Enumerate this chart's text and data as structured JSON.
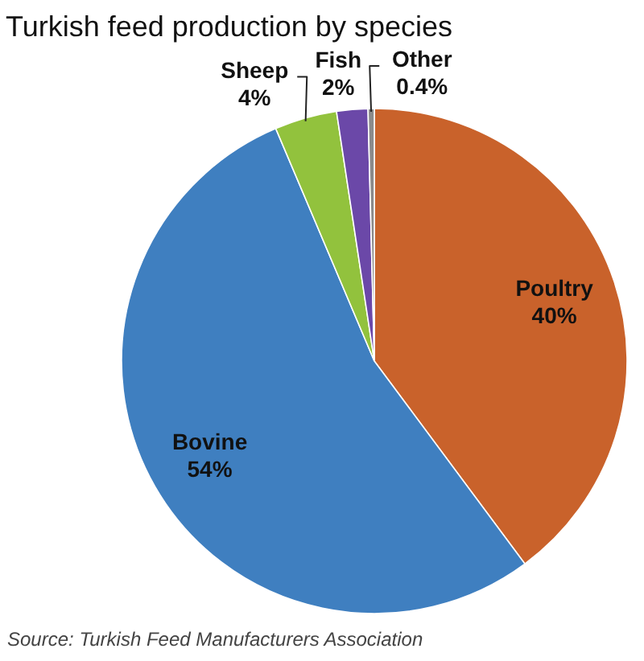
{
  "chart_data": {
    "type": "pie",
    "title": "Turkish feed production by species",
    "categories": [
      "Poultry",
      "Bovine",
      "Sheep",
      "Fish",
      "Other"
    ],
    "values": [
      40,
      54,
      4,
      2,
      0.4
    ],
    "colors": [
      "#c9622b",
      "#3f7fc0",
      "#92c23d",
      "#6b48a8",
      "#8a8a8a"
    ],
    "value_labels": [
      "40%",
      "54%",
      "4%",
      "2%",
      "0.4%"
    ],
    "annotations": [
      "Source: Turkish Feed Manufacturers Association"
    ]
  }
}
